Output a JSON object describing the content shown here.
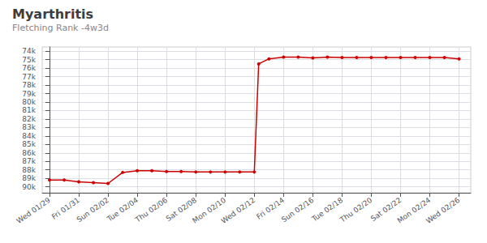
{
  "chart_data": {
    "type": "line",
    "title": "Myarthritis",
    "subtitle": "Fletching Rank -4w3d",
    "x": [
      0,
      1,
      2,
      3,
      4,
      5,
      6,
      7,
      8,
      9,
      10,
      11,
      12,
      13,
      14,
      14.3,
      15,
      16,
      17,
      18,
      19,
      20,
      21,
      22,
      23,
      24,
      25,
      26,
      27,
      28
    ],
    "values": [
      89200,
      89200,
      89400,
      89500,
      89600,
      88300,
      88100,
      88100,
      88200,
      88200,
      88250,
      88250,
      88250,
      88250,
      88250,
      75500,
      74900,
      74700,
      74700,
      74800,
      74700,
      74750,
      74750,
      74750,
      74750,
      74750,
      74750,
      74750,
      74750,
      74900
    ],
    "color": "#cc0000",
    "marker": "circle",
    "xlim": [
      -0.5,
      28.8
    ],
    "xticks": [
      {
        "value": 0,
        "label": "Wed 01/29"
      },
      {
        "value": 2,
        "label": "Fri 01/31"
      },
      {
        "value": 4,
        "label": "Sun 02/02"
      },
      {
        "value": 6,
        "label": "Tue 02/04"
      },
      {
        "value": 8,
        "label": "Thu 02/06"
      },
      {
        "value": 10,
        "label": "Sat 02/08"
      },
      {
        "value": 12,
        "label": "Mon 02/10"
      },
      {
        "value": 14,
        "label": "Wed 02/12"
      },
      {
        "value": 16,
        "label": "Fri 02/14"
      },
      {
        "value": 18,
        "label": "Sun 02/16"
      },
      {
        "value": 20,
        "label": "Tue 02/18"
      },
      {
        "value": 22,
        "label": "Thu 02/20"
      },
      {
        "value": 24,
        "label": "Sat 02/22"
      },
      {
        "value": 26,
        "label": "Mon 02/24"
      },
      {
        "value": 28,
        "label": "Wed 02/26"
      }
    ],
    "ylim": [
      90700,
      73500
    ],
    "yticks": [
      {
        "value": 74000,
        "label": "74k"
      },
      {
        "value": 75000,
        "label": "75k"
      },
      {
        "value": 76000,
        "label": "76k"
      },
      {
        "value": 77000,
        "label": "77k"
      },
      {
        "value": 78000,
        "label": "78k"
      },
      {
        "value": 79000,
        "label": "79k"
      },
      {
        "value": 80000,
        "label": "80k"
      },
      {
        "value": 81000,
        "label": "81k"
      },
      {
        "value": 82000,
        "label": "82k"
      },
      {
        "value": 83000,
        "label": "83k"
      },
      {
        "value": 84000,
        "label": "84k"
      },
      {
        "value": 85000,
        "label": "85k"
      },
      {
        "value": 86000,
        "label": "86k"
      },
      {
        "value": 87000,
        "label": "87k"
      },
      {
        "value": 88000,
        "label": "88k"
      },
      {
        "value": 89000,
        "label": "89k"
      },
      {
        "value": 90000,
        "label": "90k"
      }
    ],
    "grid": true
  }
}
